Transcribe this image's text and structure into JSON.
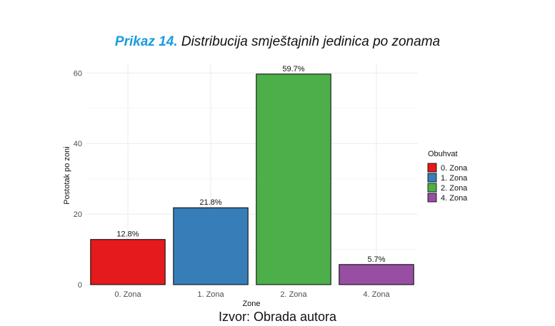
{
  "title": {
    "prefix": "Prikaz 14.",
    "text": "Distribucija smještajnih jedinica po zonama"
  },
  "source": "Izvor: Obrada autora",
  "chart_data": {
    "type": "bar",
    "categories": [
      "0. Zona",
      "1. Zona",
      "2. Zona",
      "4. Zona"
    ],
    "values": [
      12.8,
      21.8,
      59.7,
      5.7
    ],
    "value_labels": [
      "12.8%",
      "21.8%",
      "59.7%",
      "5.7%"
    ],
    "colors": [
      "#e41a1c",
      "#377eb8",
      "#4daf4a",
      "#984ea3"
    ],
    "xlabel": "Zone",
    "ylabel": "Postotak po zoni",
    "ylim": [
      0,
      62.7
    ],
    "yticks": [
      0,
      20,
      40,
      60
    ],
    "grid": true,
    "legend": {
      "title": "Obuhvat",
      "position": "right",
      "entries": [
        "0. Zona",
        "1. Zona",
        "2. Zona",
        "4. Zona"
      ]
    }
  }
}
